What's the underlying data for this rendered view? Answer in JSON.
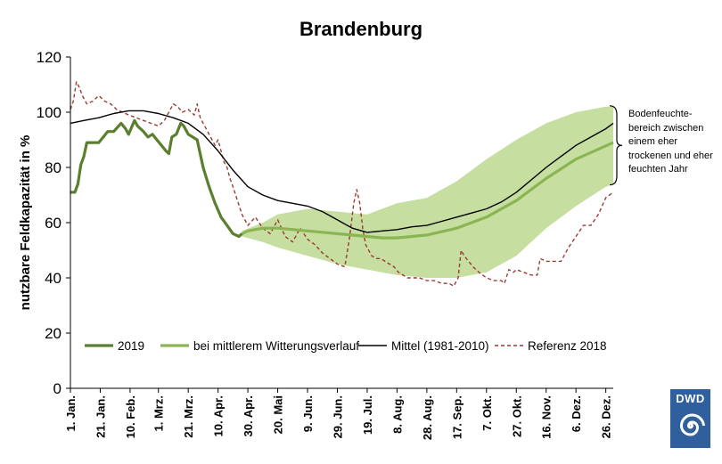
{
  "title": "Brandenburg",
  "annotation": "Bodenfeuchte-bereich zwischen einem eher trockenen und eher feuchten Jahr",
  "logo_text": "DWD",
  "colors": {
    "band": "#c6dea0",
    "series_2019": "#5a7f2e",
    "series_mittlerer": "#8bb552",
    "series_mittel": "#000000",
    "series_referenz": "#9a3b32",
    "logo_bg": "#2f5f9c"
  },
  "chart_data": {
    "type": "line",
    "ylabel": "nutzbare Feldkapazität in %",
    "xlabel": "",
    "ylim": [
      0,
      120
    ],
    "yticks": [
      0,
      20,
      40,
      60,
      80,
      100,
      120
    ],
    "x_unit": "day of year (1 = 1. Jan.)",
    "xlim": [
      1,
      365
    ],
    "xtick_days": [
      1,
      21,
      41,
      60,
      80,
      100,
      120,
      140,
      160,
      180,
      200,
      220,
      240,
      260,
      280,
      300,
      320,
      340,
      360
    ],
    "xtick_labels": [
      "1. Jan.",
      "21. Jan.",
      "10. Feb.",
      "1. Mrz.",
      "21. Mrz.",
      "10. Apr.",
      "30. Apr.",
      "20. Mai",
      "9. Jun.",
      "29. Jun.",
      "19. Jul.",
      "8. Aug.",
      "28. Aug.",
      "17. Sep.",
      "7. Okt.",
      "27. Okt.",
      "16. Nov.",
      "6. Dez.",
      "26. Dez."
    ],
    "legend_position": "bottom",
    "band": {
      "name": "Bodenfeuchte-bereich",
      "x": [
        116,
        130,
        140,
        160,
        180,
        200,
        220,
        240,
        260,
        280,
        300,
        320,
        340,
        360,
        365
      ],
      "upper": [
        57,
        60,
        63,
        65,
        64,
        63,
        67,
        69,
        75,
        83,
        90,
        96,
        100,
        102,
        102
      ],
      "lower": [
        55,
        53,
        51,
        48,
        45,
        43,
        41,
        40,
        40,
        42,
        48,
        58,
        66,
        73,
        74
      ]
    },
    "series": [
      {
        "name": "2019",
        "x": [
          1,
          4,
          6,
          8,
          10,
          12,
          14,
          20,
          26,
          30,
          35,
          38,
          40,
          44,
          46,
          50,
          53,
          56,
          59,
          62,
          65,
          67,
          69,
          72,
          75,
          77,
          80,
          83,
          86,
          90,
          94,
          98,
          102,
          106,
          110,
          114,
          116
        ],
        "values": [
          71,
          71,
          74,
          81,
          84,
          89,
          89,
          89,
          93,
          93,
          96,
          94,
          92,
          97,
          95,
          93,
          91,
          92,
          90,
          88,
          86,
          85,
          91,
          92,
          96,
          95,
          92,
          91,
          90,
          80,
          73,
          67,
          62,
          59,
          56,
          55,
          56
        ]
      },
      {
        "name": "bei mittlerem Witterungsverlauf",
        "x": [
          116,
          120,
          130,
          140,
          160,
          180,
          200,
          210,
          220,
          240,
          260,
          280,
          300,
          320,
          340,
          365
        ],
        "values": [
          56,
          57,
          58,
          58,
          57,
          56,
          55,
          54.5,
          54.5,
          55.5,
          58,
          62,
          68,
          76,
          83,
          89
        ]
      },
      {
        "name": "Mittel (1981-2010)",
        "x": [
          1,
          10,
          20,
          30,
          40,
          50,
          60,
          70,
          80,
          90,
          100,
          110,
          120,
          130,
          140,
          150,
          160,
          170,
          180,
          190,
          200,
          210,
          220,
          230,
          240,
          250,
          260,
          270,
          280,
          290,
          300,
          310,
          320,
          330,
          340,
          350,
          360,
          365
        ],
        "values": [
          96,
          97,
          98,
          99.5,
          100.5,
          100.5,
          99.5,
          98,
          96,
          92,
          86,
          79,
          73,
          70,
          68,
          67,
          66,
          64,
          61,
          58,
          56.5,
          57,
          57.5,
          58.5,
          59,
          60.5,
          62,
          63.5,
          65,
          67.5,
          71,
          75.5,
          80,
          84,
          88,
          91,
          94,
          96
        ]
      },
      {
        "name": "Referenz 2018",
        "x": [
          1,
          3,
          5,
          7,
          9,
          12,
          16,
          20,
          24,
          28,
          32,
          36,
          40,
          45,
          50,
          55,
          60,
          64,
          68,
          70,
          73,
          76,
          80,
          84,
          86,
          88,
          90,
          92,
          94,
          96,
          98,
          100,
          102,
          104,
          106,
          108,
          110,
          113,
          116,
          120,
          125,
          130,
          135,
          140,
          145,
          150,
          155,
          160,
          165,
          170,
          175,
          180,
          185,
          188,
          191,
          193,
          195,
          197,
          199,
          201,
          203,
          206,
          209,
          212,
          215,
          218,
          221,
          224,
          227,
          230,
          235,
          240,
          245,
          250,
          255,
          258,
          261,
          263,
          265,
          268,
          271,
          275,
          280,
          285,
          290,
          292,
          295,
          298,
          300,
          305,
          310,
          314,
          316,
          320,
          325,
          330,
          335,
          340,
          345,
          350,
          355,
          360,
          365
        ],
        "values": [
          101,
          104,
          111,
          109,
          106,
          103,
          104,
          106,
          104,
          103,
          101,
          100,
          99,
          98,
          97,
          96,
          95,
          97,
          101,
          103,
          102,
          100,
          101,
          99,
          103,
          98,
          96,
          94,
          92,
          90,
          88,
          90,
          86,
          82,
          80,
          76,
          73,
          68,
          63,
          59,
          62,
          58,
          56,
          61,
          55,
          53,
          58,
          54,
          52,
          49,
          47,
          45,
          44,
          54,
          67,
          72,
          67,
          58,
          52,
          50,
          48,
          47,
          47,
          46,
          45,
          44,
          42,
          41,
          40,
          40,
          40,
          39,
          39,
          38,
          38,
          37,
          40,
          50,
          48,
          46,
          44,
          42,
          40,
          39,
          39,
          38,
          43,
          42,
          43,
          42,
          41,
          41,
          47,
          46,
          46,
          46,
          51,
          55,
          59,
          59,
          63,
          69,
          71
        ]
      }
    ]
  }
}
